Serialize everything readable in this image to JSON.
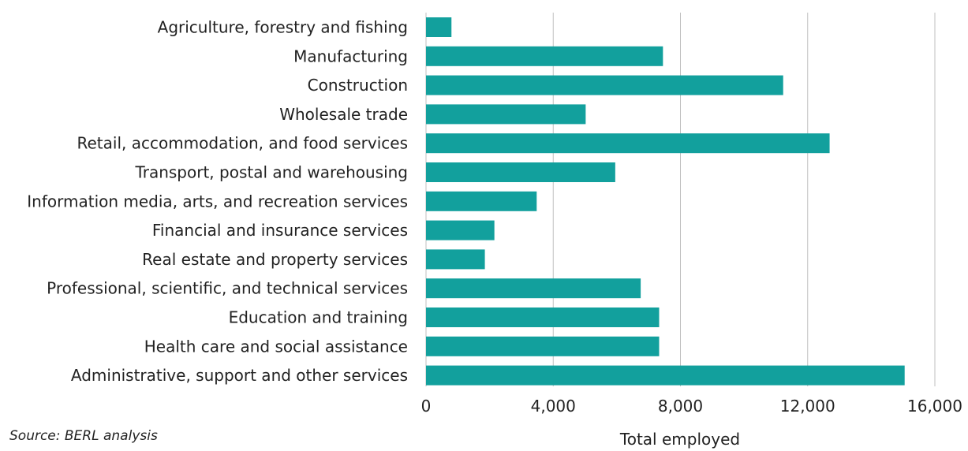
{
  "chart_data": {
    "type": "bar",
    "orientation": "horizontal",
    "categories": [
      "Agriculture, forestry and fishing",
      "Manufacturing",
      "Construction",
      "Wholesale trade",
      "Retail, accommodation, and food services",
      "Transport, postal and warehousing",
      "Information media, arts, and recreation services",
      "Financial and insurance services",
      "Real estate and property services",
      "Professional, scientific, and technical services",
      "Education and training",
      "Health care and social assistance",
      "Administrative, support and other services"
    ],
    "values": [
      800,
      7450,
      11230,
      5020,
      12690,
      5950,
      3480,
      2150,
      1850,
      6750,
      7330,
      7330,
      15050
    ],
    "xlabel": "Total employed",
    "ylabel": "",
    "xlim": [
      0,
      16000
    ],
    "xticks": [
      0,
      4000,
      8000,
      12000,
      16000
    ],
    "xtick_labels": [
      "0",
      "4,000",
      "8,000",
      "12,000",
      "16,000"
    ],
    "grid": true,
    "bar_color": "#12a09d"
  },
  "footnote": "Source: BERL analysis"
}
